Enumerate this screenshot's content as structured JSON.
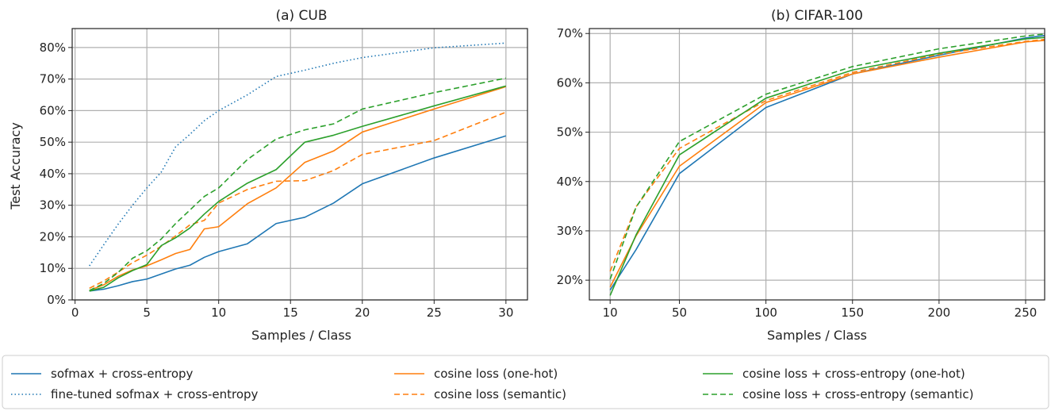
{
  "colors": {
    "softmax": "#1f77b4",
    "cosine": "#ff7f0e",
    "cosine_ce": "#2ca02c",
    "grid": "#b0b0b0"
  },
  "legend": {
    "placement": "bottom, outside",
    "entries": [
      {
        "label": "sofmax + cross-entropy",
        "color": "#1f77b4",
        "dash": "solid"
      },
      {
        "label": "fine-tuned sofmax + cross-entropy",
        "color": "#1f77b4",
        "dash": "dotted"
      },
      {
        "label": "cosine loss (one-hot)",
        "color": "#ff7f0e",
        "dash": "solid"
      },
      {
        "label": "cosine loss (semantic)",
        "color": "#ff7f0e",
        "dash": "dashed"
      },
      {
        "label": "cosine loss + cross-entropy (one-hot)",
        "color": "#2ca02c",
        "dash": "solid"
      },
      {
        "label": "cosine loss + cross-entropy (semantic)",
        "color": "#2ca02c",
        "dash": "dashed"
      }
    ]
  },
  "chart_data": [
    {
      "type": "line",
      "title": "(a) CUB",
      "xlabel": "Samples / Class",
      "ylabel": "Test Accuracy",
      "xlim": [
        -0.2,
        31.5
      ],
      "ylim": [
        0,
        86
      ],
      "xticks": [
        0,
        5,
        10,
        15,
        20,
        25,
        30
      ],
      "yticks": [
        0,
        10,
        20,
        30,
        40,
        50,
        60,
        70,
        80
      ],
      "ytick_suffix": "%",
      "grid": true,
      "series": [
        {
          "name": "sofmax + cross-entropy",
          "color": "#1f77b4",
          "dash": "solid",
          "x": [
            1,
            2,
            3,
            4,
            5,
            6,
            7,
            8,
            9,
            10,
            12,
            14,
            16,
            18,
            20,
            25,
            30
          ],
          "y": [
            2.8,
            3.4,
            4.5,
            5.8,
            6.6,
            8.2,
            9.8,
            11.0,
            13.5,
            15.3,
            17.8,
            24.2,
            26.2,
            30.7,
            36.8,
            45.0,
            52.0
          ]
        },
        {
          "name": "fine-tuned sofmax + cross-entropy",
          "color": "#1f77b4",
          "dash": "dotted",
          "x": [
            1,
            2,
            3,
            4,
            5,
            6,
            7,
            8,
            9,
            10,
            12,
            14,
            16,
            18,
            20,
            25,
            30
          ],
          "y": [
            10.8,
            17.5,
            24.0,
            30.0,
            35.5,
            40.5,
            48.5,
            52.5,
            56.8,
            60.0,
            65.0,
            70.8,
            72.8,
            75.0,
            76.8,
            79.9,
            81.4
          ]
        },
        {
          "name": "cosine loss (one-hot)",
          "color": "#ff7f0e",
          "dash": "solid",
          "x": [
            1,
            2,
            3,
            4,
            5,
            6,
            7,
            8,
            9,
            10,
            12,
            14,
            16,
            18,
            20,
            25,
            30
          ],
          "y": [
            3.0,
            4.8,
            7.5,
            9.5,
            10.8,
            12.7,
            14.7,
            16.0,
            22.5,
            23.2,
            30.5,
            35.5,
            43.6,
            47.2,
            53.2,
            60.5,
            67.6
          ]
        },
        {
          "name": "cosine loss (semantic)",
          "color": "#ff7f0e",
          "dash": "dashed",
          "x": [
            1,
            2,
            3,
            4,
            5,
            6,
            7,
            8,
            9,
            10,
            12,
            14,
            16,
            18,
            20,
            25,
            30
          ],
          "y": [
            3.7,
            6.0,
            8.8,
            11.8,
            14.2,
            17.0,
            20.3,
            23.8,
            25.2,
            30.7,
            35.0,
            37.6,
            37.8,
            41.0,
            46.1,
            50.5,
            59.5
          ]
        },
        {
          "name": "cosine loss + cross-entropy (one-hot)",
          "color": "#2ca02c",
          "dash": "solid",
          "x": [
            1,
            2,
            3,
            4,
            5,
            6,
            7,
            8,
            9,
            10,
            12,
            14,
            16,
            18,
            20,
            25,
            30
          ],
          "y": [
            2.8,
            4.0,
            7.0,
            9.3,
            11.2,
            17.2,
            19.7,
            22.8,
            27.2,
            31.2,
            37.0,
            41.3,
            50.0,
            52.2,
            55.0,
            61.5,
            67.8
          ]
        },
        {
          "name": "cosine loss + cross-entropy (semantic)",
          "color": "#2ca02c",
          "dash": "dashed",
          "x": [
            1,
            2,
            3,
            4,
            5,
            6,
            7,
            8,
            9,
            10,
            12,
            14,
            16,
            18,
            20,
            25,
            30
          ],
          "y": [
            3.0,
            5.2,
            8.7,
            13.2,
            15.6,
            19.3,
            24.2,
            28.5,
            32.8,
            35.5,
            44.5,
            51.0,
            53.9,
            55.8,
            60.5,
            65.7,
            70.3
          ]
        }
      ]
    },
    {
      "type": "line",
      "title": "(b) CIFAR-100",
      "xlabel": "Samples / Class",
      "ylabel": "",
      "xlim": [
        -2,
        261
      ],
      "ylim": [
        16,
        71
      ],
      "xticks": [
        10,
        50,
        100,
        150,
        200,
        250
      ],
      "yticks": [
        20,
        30,
        40,
        50,
        60,
        70
      ],
      "ytick_suffix": "%",
      "grid": true,
      "series": [
        {
          "name": "sofmax + cross-entropy",
          "color": "#1f77b4",
          "dash": "solid",
          "x": [
            10,
            25,
            50,
            100,
            150,
            200,
            250,
            261
          ],
          "y": [
            18.0,
            26.2,
            41.6,
            55.0,
            61.8,
            65.6,
            69.1,
            69.6
          ]
        },
        {
          "name": "cosine loss (one-hot)",
          "color": "#ff7f0e",
          "dash": "solid",
          "x": [
            10,
            25,
            50,
            100,
            150,
            200,
            250,
            261
          ],
          "y": [
            18.6,
            29.0,
            43.1,
            56.0,
            61.8,
            65.2,
            68.3,
            68.6
          ]
        },
        {
          "name": "cosine loss (semantic)",
          "color": "#ff7f0e",
          "dash": "dashed",
          "x": [
            10,
            25,
            50,
            100,
            150,
            200,
            250,
            261
          ],
          "y": [
            21.8,
            34.9,
            46.7,
            56.4,
            62.1,
            65.8,
            68.4,
            68.8
          ]
        },
        {
          "name": "cosine loss + cross-entropy (one-hot)",
          "color": "#2ca02c",
          "dash": "solid",
          "x": [
            10,
            25,
            50,
            100,
            150,
            200,
            250,
            261
          ],
          "y": [
            16.9,
            29.2,
            45.4,
            56.9,
            62.6,
            66.0,
            68.9,
            69.2
          ]
        },
        {
          "name": "cosine loss + cross-entropy (semantic)",
          "color": "#2ca02c",
          "dash": "dashed",
          "x": [
            10,
            25,
            50,
            100,
            150,
            200,
            250,
            261
          ],
          "y": [
            20.2,
            34.8,
            48.1,
            57.7,
            63.3,
            66.9,
            69.5,
            69.9
          ]
        }
      ]
    }
  ]
}
